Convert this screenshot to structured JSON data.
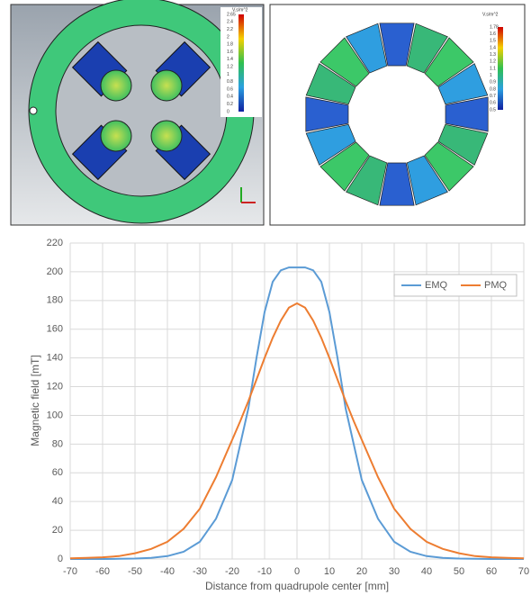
{
  "panels": [
    {
      "colorbar_unit": "V.s/m^2",
      "colorbar_labels": [
        "2.65",
        "2.4",
        "2.2",
        "2",
        "1.8",
        "1.6",
        "1.4",
        "1.2",
        "1",
        "0.8",
        "0.6",
        "0.4",
        "0.2",
        "0"
      ]
    },
    {
      "colorbar_unit": "V.s/m^2",
      "colorbar_labels": [
        "1.78",
        "1.6",
        "1.5",
        "1.4",
        "1.3",
        "1.2",
        "1.1",
        "1",
        "0.9",
        "0.8",
        "0.7",
        "0.6",
        "0.5"
      ]
    }
  ],
  "chart_data": {
    "type": "line",
    "x_label": "Distance from quadrupole center [mm]",
    "y_label": "Magnetic field [mT]",
    "x": [
      -70,
      -65,
      -60,
      -55,
      -50,
      -45,
      -40,
      -35,
      -30,
      -25,
      -20,
      -17.5,
      -15,
      -12.5,
      -10,
      -7.5,
      -5,
      -2.5,
      0,
      2.5,
      5,
      7.5,
      10,
      12.5,
      15,
      17.5,
      20,
      25,
      30,
      35,
      40,
      45,
      50,
      55,
      60,
      65,
      70
    ],
    "series": [
      {
        "name": "EMQ",
        "color": "#5b9bd5",
        "values": [
          0,
          0,
          0,
          0.1,
          0.3,
          0.8,
          2,
          5,
          12,
          28,
          55,
          80,
          105,
          140,
          172,
          193,
          201,
          203,
          203,
          203,
          201,
          193,
          172,
          140,
          105,
          80,
          55,
          28,
          12,
          5,
          2,
          0.8,
          0.3,
          0.1,
          0,
          0,
          0
        ]
      },
      {
        "name": "PMQ",
        "color": "#ed7d31",
        "values": [
          0.5,
          0.8,
          1.2,
          2,
          4,
          7,
          12,
          21,
          35,
          57,
          83,
          96,
          110,
          125,
          140,
          154,
          166,
          175,
          178,
          175,
          166,
          154,
          140,
          125,
          110,
          96,
          83,
          57,
          35,
          21,
          12,
          7,
          4,
          2,
          1.2,
          0.8,
          0.5
        ]
      }
    ],
    "xlim": [
      -70,
      70
    ],
    "xticks": [
      -70,
      -60,
      -50,
      -40,
      -30,
      -20,
      -10,
      0,
      10,
      20,
      30,
      40,
      50,
      60,
      70
    ],
    "ylim": [
      0,
      220
    ],
    "yticks": [
      0,
      20,
      40,
      60,
      80,
      100,
      120,
      140,
      160,
      180,
      200,
      220
    ],
    "grid": true,
    "legend": "upper right"
  }
}
